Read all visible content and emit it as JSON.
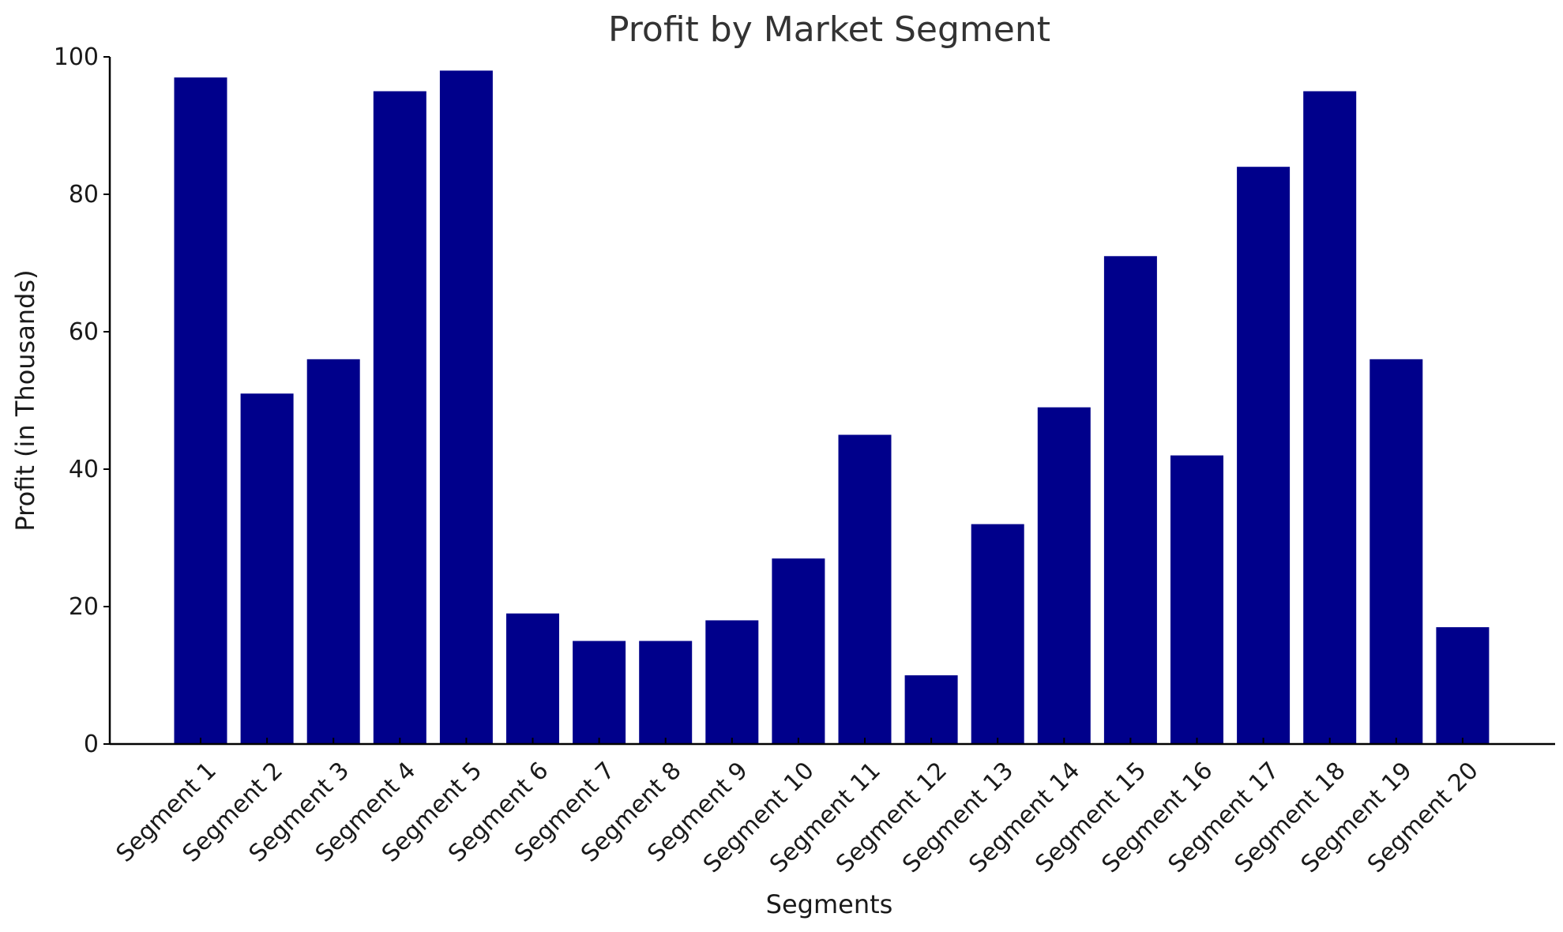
{
  "chart_data": {
    "type": "bar",
    "title": "Profit by Market Segment",
    "xlabel": "Segments",
    "ylabel": "Profit (in Thousands)",
    "ylim": [
      0,
      100
    ],
    "yticks": [
      0,
      20,
      40,
      60,
      80,
      100
    ],
    "categories": [
      "Segment 1",
      "Segment 2",
      "Segment 3",
      "Segment 4",
      "Segment 5",
      "Segment 6",
      "Segment 7",
      "Segment 8",
      "Segment 9",
      "Segment 10",
      "Segment 11",
      "Segment 12",
      "Segment 13",
      "Segment 14",
      "Segment 15",
      "Segment 16",
      "Segment 17",
      "Segment 18",
      "Segment 19",
      "Segment 20"
    ],
    "values": [
      97,
      51,
      56,
      95,
      98,
      19,
      15,
      15,
      18,
      27,
      45,
      10,
      32,
      49,
      71,
      42,
      84,
      95,
      56,
      17
    ],
    "bar_color": "#00008b",
    "grid": false
  }
}
